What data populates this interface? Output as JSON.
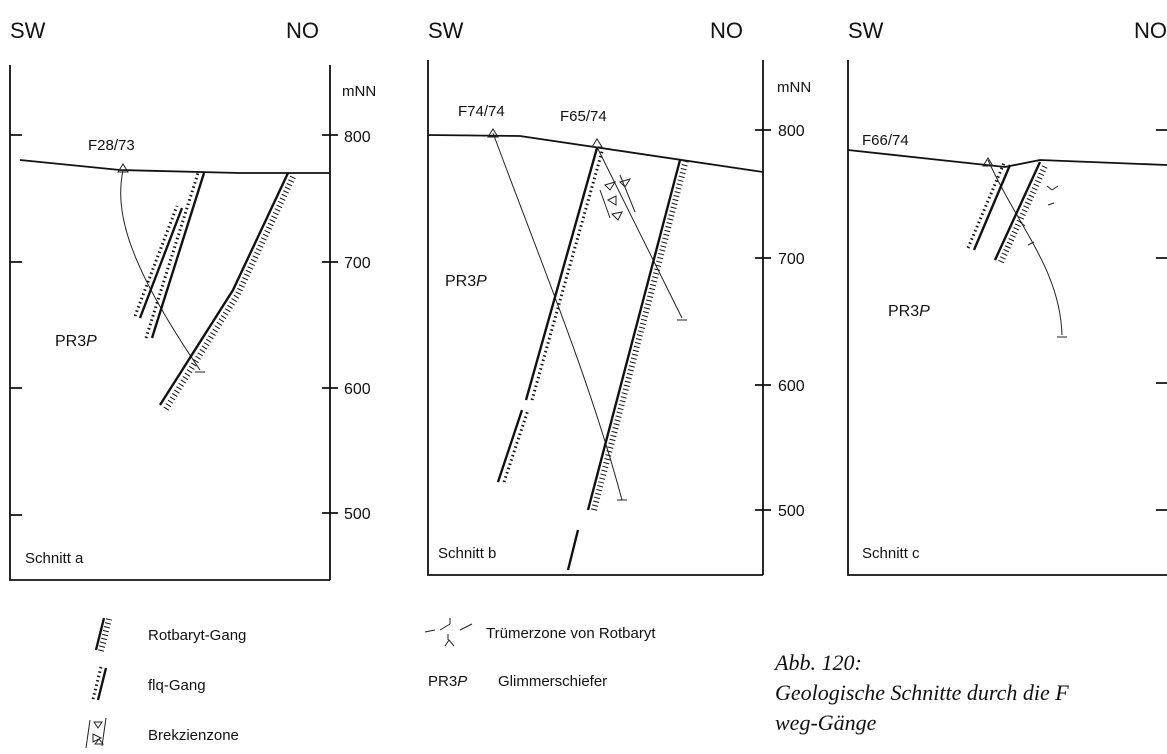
{
  "panels": [
    {
      "left": "SW",
      "right": "NO",
      "unit": "mNN",
      "elevations": [
        800,
        700,
        600,
        500
      ],
      "boreholes": [
        "F28/73"
      ],
      "rock": {
        "code": "PR3",
        "italic": "P"
      },
      "name": "Schnitt a"
    },
    {
      "left": "SW",
      "right": "NO",
      "unit": "mNN",
      "elevations": [
        800,
        700,
        600,
        500
      ],
      "boreholes": [
        "F74/74",
        "F65/74"
      ],
      "rock": {
        "code": "PR3",
        "italic": "P"
      },
      "name": "Schnitt b"
    },
    {
      "left": "SW",
      "right": "NO",
      "boreholes": [
        "F66/74"
      ],
      "rock": {
        "code": "PR3",
        "italic": "P"
      },
      "name": "Schnitt c"
    }
  ],
  "legend": [
    {
      "label": "Rotbaryt-Gang"
    },
    {
      "label": "flq-Gang"
    },
    {
      "label": "Brekzienzone"
    },
    {
      "label": "Trümerzone von Rotbaryt"
    },
    {
      "code": "PR3",
      "italic": "P",
      "label": "Glimmerschiefer"
    }
  ],
  "caption": {
    "number": "Abb. 120:",
    "lines": [
      "Geologische Schnitte durch die F",
      "weg-Gänge"
    ]
  }
}
